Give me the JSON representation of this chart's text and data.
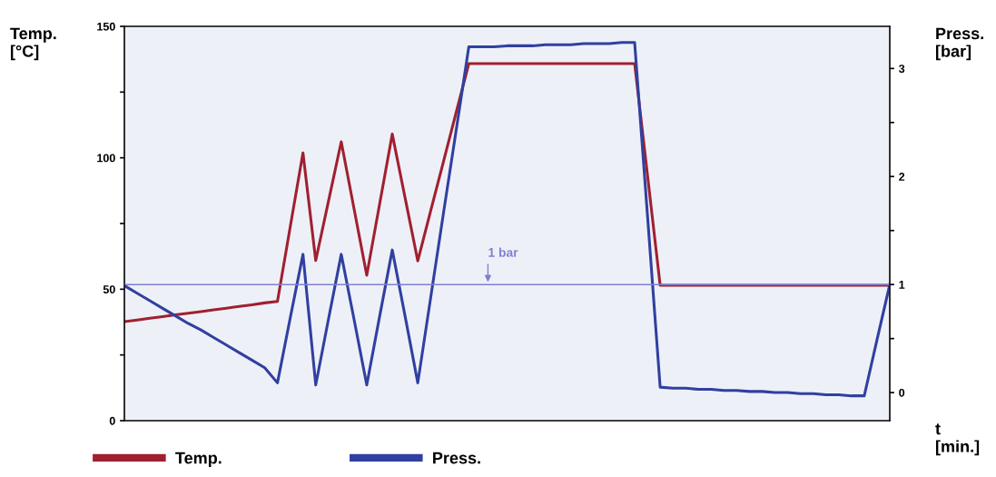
{
  "chart_data": {
    "type": "line",
    "xlabel": "t\n[min.]",
    "ylabel": "Temp.\n[°C]",
    "y2label": "Press.\n[bar]",
    "categories": [
      null,
      null,
      null,
      null,
      null,
      null,
      null,
      null,
      null,
      null,
      null,
      null,
      null,
      null,
      null,
      null,
      null,
      null,
      null,
      null,
      null,
      null,
      null,
      null,
      null,
      null,
      null,
      null,
      null,
      null,
      null,
      null,
      null,
      null,
      null,
      null,
      null,
      null,
      null,
      null,
      null,
      null,
      null,
      null,
      null,
      null,
      null,
      null,
      null,
      null,
      null,
      null,
      null,
      null,
      null,
      null,
      null,
      null,
      null,
      null,
      null
    ],
    "ylim": [
      0,
      150
    ],
    "yticks": [
      0,
      {
        "value": 25,
        "label": null
      },
      50,
      {
        "value": 75,
        "label": null
      },
      100,
      {
        "value": 125,
        "label": null
      },
      150
    ],
    "y2lim": [
      -0.26,
      3.39
    ],
    "y2ticks": [
      0,
      {
        "value": 0.5,
        "label": null
      },
      1,
      {
        "value": 1.5,
        "label": null
      },
      2,
      {
        "value": 2.5,
        "label": null
      },
      3
    ],
    "series": [
      {
        "name": "Temp.",
        "color": "#a02030",
        "values": [
          37.7,
          38.3,
          39.0,
          39.6,
          40.3,
          40.9,
          41.5,
          42.2,
          42.8,
          43.5,
          44.1,
          44.8,
          45.4,
          73.7,
          101.9,
          60.9,
          83.5,
          106.1,
          80.7,
          55.3,
          82.2,
          109,
          84.9,
          60.8,
          79.6,
          98.3,
          117.1,
          135.8,
          135.8,
          135.8,
          135.8,
          135.8,
          135.8,
          135.8,
          135.8,
          135.8,
          135.8,
          135.8,
          135.8,
          135.8,
          135.8,
          93.7,
          51.5,
          51.5,
          51.5,
          51.5,
          51.5,
          51.5,
          51.5,
          51.5,
          51.5,
          51.5,
          51.5,
          51.5,
          51.5,
          51.5,
          51.5,
          51.5,
          51.5,
          51.5,
          51.5
        ]
      },
      {
        "name": "Press.",
        "color": "#3040a0",
        "axis": "y2",
        "values": [
          0.99,
          0.92,
          0.85,
          0.78,
          0.71,
          0.64,
          0.58,
          0.51,
          0.44,
          0.37,
          0.3,
          0.23,
          0.09,
          0.69,
          1.28,
          0.07,
          0.68,
          1.28,
          0.68,
          0.07,
          0.7,
          1.32,
          0.71,
          0.09,
          0.87,
          1.65,
          2.42,
          3.2,
          3.2,
          3.2,
          3.21,
          3.21,
          3.21,
          3.22,
          3.22,
          3.22,
          3.23,
          3.23,
          3.23,
          3.24,
          3.24,
          1.65,
          0.05,
          0.04,
          0.04,
          0.03,
          0.03,
          0.02,
          0.02,
          0.01,
          0.01,
          0.0,
          0.0,
          -0.01,
          -0.01,
          -0.02,
          -0.02,
          -0.03,
          -0.03,
          0.49,
          1.0
        ]
      }
    ],
    "ref_lines": [
      {
        "axis": "y2",
        "value": 1,
        "label": "1 bar",
        "color": "#8080d0"
      }
    ],
    "legend": "bottom",
    "grid": false
  }
}
